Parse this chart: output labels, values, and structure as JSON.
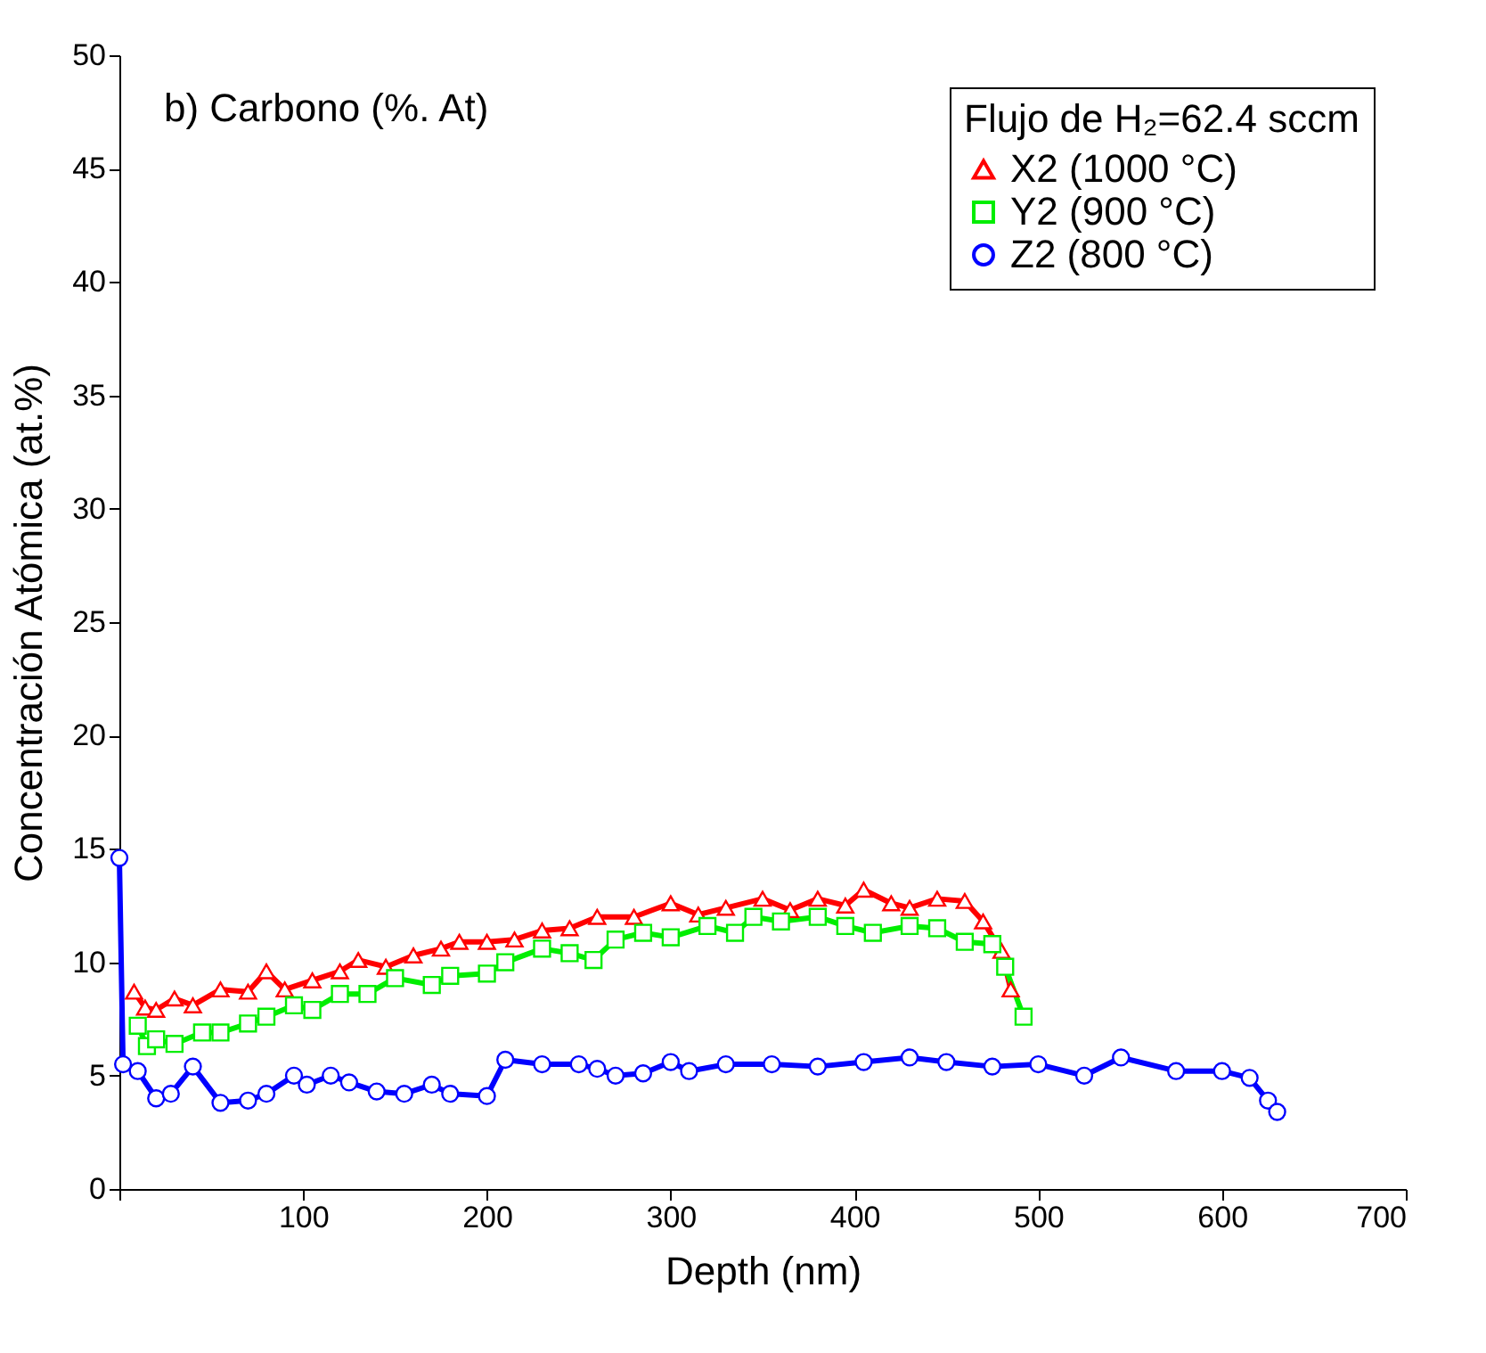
{
  "chart_data": {
    "type": "line",
    "xlabel": "Depth (nm)",
    "ylabel": "Concentración Atómica (at.%)",
    "legend_title": "Flujo de H₂=62.4 sccm",
    "annotations": [
      "b) Carbono (%. At)"
    ],
    "xlim": [
      0,
      700
    ],
    "xticks": [
      {
        "value": 0,
        "label": null
      },
      100,
      200,
      300,
      400,
      500,
      600,
      700
    ],
    "ylim": [
      0,
      50
    ],
    "yticks": [
      0,
      5,
      10,
      15,
      20,
      25,
      30,
      35,
      40,
      45,
      50
    ],
    "grid": false,
    "legend": "top right",
    "series": [
      {
        "name": "X2 (1000 °C)",
        "color": "#ff0000",
        "marker": "triangle",
        "x": [
          8,
          14,
          20,
          30,
          40,
          55,
          70,
          80,
          90,
          105,
          120,
          130,
          145,
          160,
          175,
          185,
          200,
          215,
          230,
          245,
          260,
          280,
          300,
          315,
          330,
          350,
          365,
          380,
          395,
          405,
          420,
          430,
          445,
          460,
          470,
          480,
          485
        ],
        "values": [
          8.7,
          8.0,
          7.9,
          8.4,
          8.1,
          8.8,
          8.7,
          9.6,
          8.8,
          9.2,
          9.6,
          10.1,
          9.8,
          10.3,
          10.6,
          10.9,
          10.9,
          11.0,
          11.4,
          11.5,
          12.0,
          12.0,
          12.6,
          12.1,
          12.4,
          12.8,
          12.3,
          12.8,
          12.5,
          13.2,
          12.6,
          12.4,
          12.8,
          12.7,
          11.8,
          10.5,
          8.8
        ]
      },
      {
        "name": "Y2 (900 °C)",
        "color": "#00ee00",
        "marker": "square",
        "x": [
          10,
          15,
          20,
          30,
          45,
          55,
          70,
          80,
          95,
          105,
          120,
          135,
          150,
          170,
          180,
          200,
          210,
          230,
          245,
          258,
          270,
          285,
          300,
          320,
          335,
          345,
          360,
          380,
          395,
          410,
          430,
          445,
          460,
          475,
          482,
          492
        ],
        "values": [
          7.2,
          6.3,
          6.6,
          6.4,
          6.9,
          6.9,
          7.3,
          7.6,
          8.1,
          7.9,
          8.6,
          8.6,
          9.3,
          9.0,
          9.4,
          9.5,
          10.0,
          10.6,
          10.4,
          10.1,
          11.0,
          11.3,
          11.1,
          11.6,
          11.3,
          12.0,
          11.8,
          12.0,
          11.6,
          11.3,
          11.6,
          11.5,
          10.9,
          10.8,
          9.8,
          7.6
        ]
      },
      {
        "name": "Z2 (800 °C)",
        "color": "#0000ff",
        "marker": "circle",
        "x": [
          0,
          2,
          10,
          20,
          28,
          40,
          55,
          70,
          80,
          95,
          102,
          115,
          125,
          140,
          155,
          170,
          180,
          200,
          210,
          230,
          250,
          260,
          270,
          285,
          300,
          310,
          330,
          355,
          380,
          405,
          430,
          450,
          475,
          500,
          525,
          545,
          575,
          600,
          615,
          625,
          630
        ],
        "values": [
          14.6,
          5.5,
          5.2,
          4.0,
          4.2,
          5.4,
          3.8,
          3.9,
          4.2,
          5.0,
          4.6,
          5.0,
          4.7,
          4.3,
          4.2,
          4.6,
          4.2,
          4.1,
          5.7,
          5.5,
          5.5,
          5.3,
          5.0,
          5.1,
          5.6,
          5.2,
          5.5,
          5.5,
          5.4,
          5.6,
          5.8,
          5.6,
          5.4,
          5.5,
          5.0,
          5.8,
          5.2,
          5.2,
          4.9,
          3.9,
          3.4
        ]
      }
    ]
  }
}
